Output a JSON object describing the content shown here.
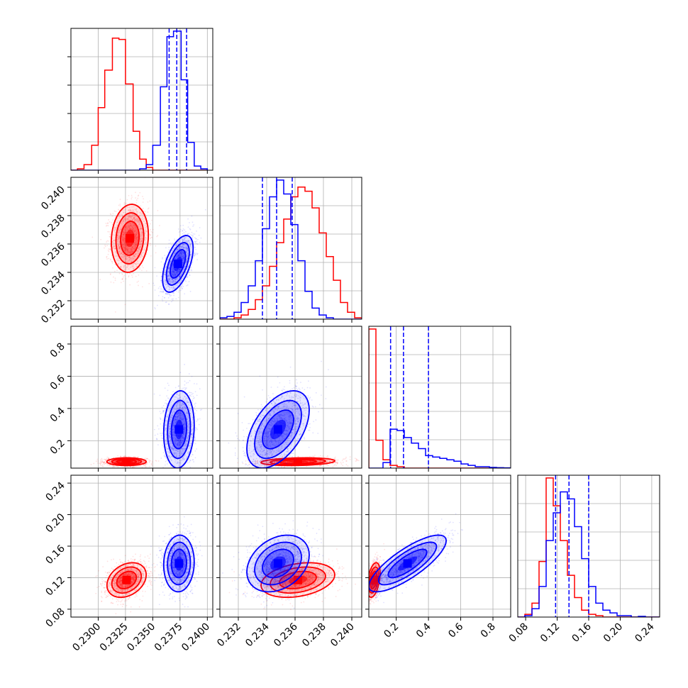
{
  "chart_data": {
    "type": "corner",
    "description_free": true,
    "grid": true,
    "colors": {
      "series_a": "#0000ff",
      "series_b": "#ff0000"
    },
    "series": [
      {
        "color": "#ff0000"
      },
      {
        "color": "#0000ff"
      }
    ],
    "params": [
      {
        "range": [
          0.2275,
          0.2405
        ],
        "ticks": [
          "0.2300",
          "0.2325",
          "0.2350",
          "0.2375",
          "0.2400"
        ],
        "tick_values": [
          0.23,
          0.2325,
          0.235,
          0.2375,
          0.24
        ]
      },
      {
        "range": [
          0.2307,
          0.2407
        ],
        "ticks": [
          "0.232",
          "0.234",
          "0.236",
          "0.238",
          "0.240"
        ],
        "tick_values": [
          0.232,
          0.234,
          0.236,
          0.238,
          0.24
        ]
      },
      {
        "range": [
          0.03,
          0.91
        ],
        "ticks": [
          "0.2",
          "0.4",
          "0.6",
          "0.8"
        ],
        "tick_values": [
          0.2,
          0.4,
          0.6,
          0.8
        ]
      },
      {
        "range": [
          0.07,
          0.25
        ],
        "ticks": [
          "0.08",
          "0.12",
          "0.16",
          "0.20",
          "0.24"
        ],
        "tick_values": [
          0.08,
          0.12,
          0.16,
          0.2,
          0.24
        ]
      }
    ],
    "quantile_lines": [
      [
        0.2365,
        0.2372,
        0.2381
      ],
      [
        0.2337,
        0.2347,
        0.2358
      ],
      [
        0.165,
        0.245,
        0.4
      ],
      [
        0.118,
        0.135,
        0.16
      ]
    ],
    "histograms": [
      {
        "edges": [
          0.2275,
          0.2281,
          0.2287,
          0.2294,
          0.23,
          0.2306,
          0.2313,
          0.2319,
          0.2325,
          0.2332,
          0.2338,
          0.2344,
          0.235,
          0.2357,
          0.2363,
          0.2369,
          0.2376,
          0.2382,
          0.2388,
          0.2394,
          0.24
        ],
        "red": [
          0,
          1,
          4,
          18,
          45,
          72,
          95,
          94,
          62,
          28,
          8,
          2,
          0,
          0,
          0,
          0,
          0,
          0,
          0,
          0
        ],
        "blue": [
          0,
          0,
          0,
          0,
          0,
          0,
          0,
          0,
          0,
          0,
          1,
          4,
          18,
          60,
          96,
          100,
          65,
          20,
          3,
          1
        ]
      },
      {
        "edges": [
          0.2307,
          0.2312,
          0.2317,
          0.2322,
          0.2327,
          0.2332,
          0.2337,
          0.2342,
          0.2347,
          0.2352,
          0.2357,
          0.2362,
          0.2367,
          0.2372,
          0.2377,
          0.2382,
          0.2387,
          0.2392,
          0.2397,
          0.2402,
          0.2407
        ],
        "red": [
          0,
          0,
          1,
          3,
          7,
          14,
          24,
          38,
          55,
          72,
          88,
          95,
          92,
          80,
          62,
          45,
          28,
          12,
          5,
          1
        ],
        "blue": [
          1,
          2,
          5,
          12,
          24,
          42,
          65,
          88,
          100,
          90,
          68,
          42,
          20,
          8,
          3,
          1,
          0,
          0,
          0,
          0
        ]
      },
      {
        "edges": [
          0.03,
          0.074,
          0.118,
          0.162,
          0.206,
          0.25,
          0.294,
          0.338,
          0.382,
          0.426,
          0.47,
          0.514,
          0.558,
          0.602,
          0.646,
          0.69,
          0.734,
          0.778,
          0.822,
          0.866,
          0.91
        ],
        "red": [
          100,
          20,
          6,
          2,
          1,
          0,
          0,
          0,
          0,
          0,
          0,
          0,
          0,
          0,
          0,
          0,
          0,
          0,
          0,
          0
        ],
        "blue": [
          0,
          0,
          4,
          28,
          27,
          22,
          18,
          14,
          9,
          8,
          7,
          6,
          5,
          3,
          2,
          1,
          1,
          0.5,
          0.3,
          0.2
        ]
      },
      {
        "edges": [
          0.07,
          0.079,
          0.088,
          0.097,
          0.106,
          0.115,
          0.124,
          0.133,
          0.142,
          0.151,
          0.16,
          0.169,
          0.178,
          0.187,
          0.196,
          0.205,
          0.214,
          0.223,
          0.232,
          0.241,
          0.25
        ],
        "red": [
          0,
          2,
          10,
          40,
          100,
          80,
          55,
          30,
          14,
          5,
          2,
          1,
          0,
          0,
          0,
          0,
          0,
          0,
          0,
          0
        ],
        "blue": [
          0,
          1,
          6,
          22,
          55,
          75,
          90,
          85,
          65,
          42,
          22,
          10,
          5,
          3,
          1,
          1,
          0,
          0.5,
          0,
          0
        ]
      }
    ],
    "clouds": [
      {
        "row": 1,
        "col": 0,
        "red": {
          "cx": 0.2329,
          "cy": 0.2364,
          "sx": 0.00085,
          "sy": 0.0012,
          "rho": 0.1
        },
        "blue": {
          "cx": 0.2373,
          "cy": 0.2346,
          "sx": 0.0007,
          "sy": 0.001,
          "rho": 0.55
        }
      },
      {
        "row": 2,
        "col": 0,
        "red": {
          "cx": 0.2326,
          "cy": 0.07,
          "sx": 0.0009,
          "sy": 0.012,
          "rho": 0.0
        },
        "blue": {
          "cx": 0.2374,
          "cy": 0.27,
          "sx": 0.0007,
          "sy": 0.12,
          "rho": 0.1
        }
      },
      {
        "row": 2,
        "col": 1,
        "red": {
          "cx": 0.2362,
          "cy": 0.07,
          "sx": 0.0013,
          "sy": 0.012,
          "rho": 0.2
        },
        "blue": {
          "cx": 0.2348,
          "cy": 0.27,
          "sx": 0.0011,
          "sy": 0.12,
          "rho": 0.5
        }
      },
      {
        "row": 3,
        "col": 0,
        "red": {
          "cx": 0.2326,
          "cy": 0.117,
          "sx": 0.0009,
          "sy": 0.011,
          "rho": 0.3
        },
        "blue": {
          "cx": 0.2374,
          "cy": 0.138,
          "sx": 0.0007,
          "sy": 0.018,
          "rho": 0.05
        }
      },
      {
        "row": 3,
        "col": 1,
        "red": {
          "cx": 0.2362,
          "cy": 0.117,
          "sx": 0.0013,
          "sy": 0.011,
          "rho": 0.3
        },
        "blue": {
          "cx": 0.2348,
          "cy": 0.138,
          "sx": 0.0011,
          "sy": 0.018,
          "rho": 0.3
        }
      },
      {
        "row": 3,
        "col": 2,
        "red": {
          "cx": 0.06,
          "cy": 0.117,
          "sx": 0.02,
          "sy": 0.011,
          "rho": 0.4
        },
        "blue": {
          "cx": 0.27,
          "cy": 0.138,
          "sx": 0.12,
          "sy": 0.018,
          "rho": 0.8
        }
      }
    ]
  }
}
